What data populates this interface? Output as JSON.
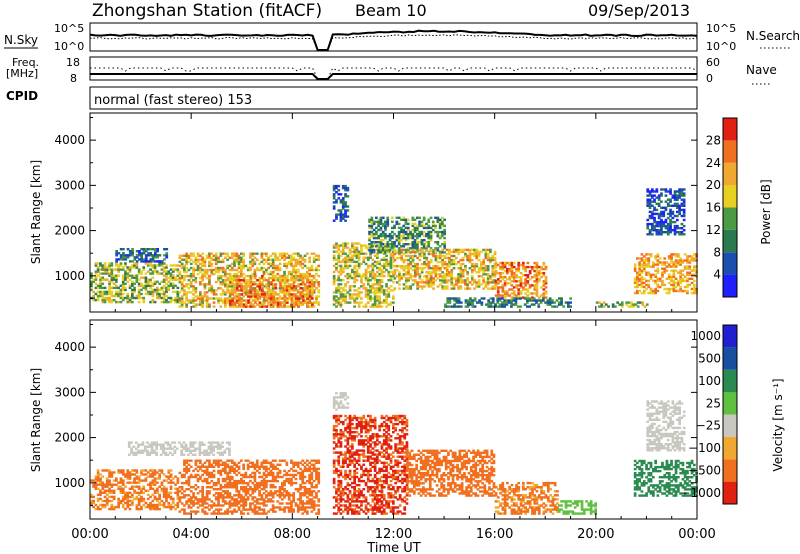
{
  "header": {
    "station": "Zhongshan Station (fitACF)",
    "beam": "Beam 10",
    "date": "09/Sep/2013"
  },
  "summary_panels": {
    "nsky": {
      "label": "N.Sky",
      "left_ticks": [
        "10^5",
        "10^0"
      ],
      "right_ticks": [
        "10^5",
        "10^0"
      ],
      "right_label": "N.Search"
    },
    "freq": {
      "label": "Freq.",
      "unit": "[MHz]",
      "left_ticks": [
        "18",
        "8"
      ],
      "right_ticks": [
        "60",
        "0"
      ],
      "right_label": "Nave"
    },
    "cpid": {
      "label": "CPID",
      "text": "normal (fast stereo) 153"
    }
  },
  "colors": {
    "power": [
      "#2020ff",
      "#1a4fb0",
      "#2a7a50",
      "#4d9a45",
      "#e8d020",
      "#f0a830",
      "#f07020",
      "#e02010"
    ],
    "velocity": [
      "#e02010",
      "#f07020",
      "#f0a830",
      "#c8c8c0",
      "#60c040",
      "#2a8a50",
      "#1a4fa0",
      "#2020d0"
    ],
    "nsky_line": "#000000"
  },
  "chart_data": [
    {
      "type": "heatmap",
      "name": "Power",
      "ylabel": "Slant Range [km]",
      "yticks": [
        "1000",
        "2000",
        "3000",
        "4000"
      ],
      "ylim": [
        200,
        4600
      ],
      "xlim_hours": [
        0,
        24
      ],
      "colorbar": {
        "label": "Power [dB]",
        "ticks": [
          "4",
          "8",
          "12",
          "16",
          "20",
          "24",
          "28"
        ],
        "range": [
          0,
          32
        ]
      },
      "echo_regions": [
        {
          "t0": 0.0,
          "t1": 3.5,
          "r0": 400,
          "r1": 1300,
          "level": 16
        },
        {
          "t0": 1.0,
          "t1": 3.0,
          "r0": 1300,
          "r1": 1600,
          "level": 8
        },
        {
          "t0": 3.5,
          "t1": 9.0,
          "r0": 300,
          "r1": 1500,
          "level": 20
        },
        {
          "t0": 5.5,
          "t1": 8.8,
          "r0": 300,
          "r1": 1000,
          "level": 24
        },
        {
          "t0": 9.6,
          "t1": 12.0,
          "r0": 300,
          "r1": 1700,
          "level": 18
        },
        {
          "t0": 9.6,
          "t1": 10.2,
          "r0": 2200,
          "r1": 3000,
          "level": 6
        },
        {
          "t0": 11.0,
          "t1": 14.0,
          "r0": 1500,
          "r1": 2300,
          "level": 12
        },
        {
          "t0": 12.0,
          "t1": 16.0,
          "r0": 700,
          "r1": 1600,
          "level": 20
        },
        {
          "t0": 16.0,
          "t1": 18.0,
          "r0": 500,
          "r1": 1300,
          "level": 24
        },
        {
          "t0": 14.0,
          "t1": 19.0,
          "r0": 300,
          "r1": 500,
          "level": 10
        },
        {
          "t0": 20.0,
          "t1": 22.0,
          "r0": 300,
          "r1": 400,
          "level": 16
        },
        {
          "t0": 21.5,
          "t1": 24.0,
          "r0": 600,
          "r1": 1500,
          "level": 22
        },
        {
          "t0": 22.0,
          "t1": 23.5,
          "r0": 1900,
          "r1": 2900,
          "level": 6
        }
      ]
    },
    {
      "type": "heatmap",
      "name": "Velocity",
      "ylabel": "Slant Range [km]",
      "yticks": [
        "1000",
        "2000",
        "3000",
        "4000"
      ],
      "ylim": [
        200,
        4600
      ],
      "xlim_hours": [
        0,
        24
      ],
      "colorbar": {
        "label": "Velocity [m s⁻¹]",
        "ticks": [
          "1000",
          "500",
          "100",
          "25",
          "−25",
          "−100",
          "−500",
          "−1000"
        ]
      },
      "echo_regions": [
        {
          "t0": 0.0,
          "t1": 3.5,
          "r0": 400,
          "r1": 1300,
          "level": -150
        },
        {
          "t0": 1.5,
          "t1": 5.5,
          "r0": 1600,
          "r1": 1900,
          "level": 0
        },
        {
          "t0": 3.5,
          "t1": 9.0,
          "r0": 300,
          "r1": 1500,
          "level": -300
        },
        {
          "t0": 9.6,
          "t1": 12.5,
          "r0": 300,
          "r1": 2500,
          "level": -600
        },
        {
          "t0": 9.6,
          "t1": 10.2,
          "r0": 2600,
          "r1": 3000,
          "level": 0
        },
        {
          "t0": 12.5,
          "t1": 16.0,
          "r0": 700,
          "r1": 1700,
          "level": -300
        },
        {
          "t0": 16.0,
          "t1": 18.5,
          "r0": 300,
          "r1": 1000,
          "level": -150
        },
        {
          "t0": 18.5,
          "t1": 20.0,
          "r0": 300,
          "r1": 600,
          "level": 60
        },
        {
          "t0": 21.5,
          "t1": 24.0,
          "r0": 700,
          "r1": 1500,
          "level": 300
        },
        {
          "t0": 22.0,
          "t1": 23.5,
          "r0": 1700,
          "r1": 2800,
          "level": 0
        }
      ]
    }
  ],
  "time_axis": {
    "label": "Time UT",
    "ticks": [
      "00:00",
      "04:00",
      "08:00",
      "12:00",
      "16:00",
      "20:00",
      "00:00"
    ]
  }
}
